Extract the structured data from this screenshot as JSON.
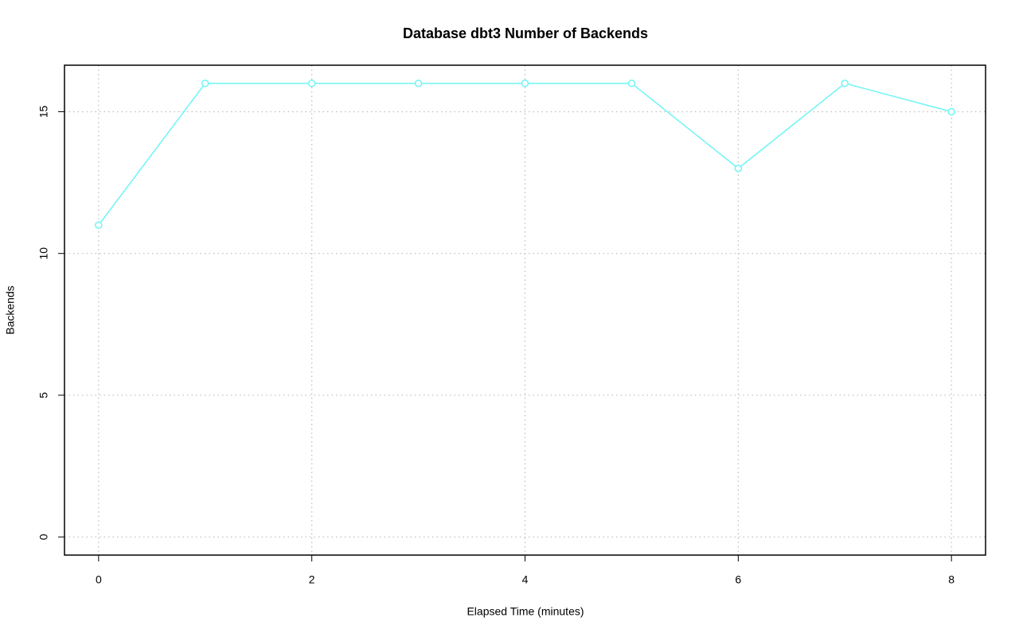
{
  "chart_data": {
    "type": "line",
    "title": "Database dbt3 Number of Backends",
    "xlabel": "Elapsed Time (minutes)",
    "ylabel": "Backends",
    "x": [
      0,
      1,
      2,
      3,
      4,
      5,
      6,
      7,
      8
    ],
    "series": [
      {
        "name": "Backends",
        "color": "#6ff5f5",
        "values": [
          11,
          16,
          16,
          16,
          16,
          16,
          13,
          16,
          15
        ]
      }
    ],
    "xlim": [
      -0.32,
      8.32
    ],
    "xticks": [
      0,
      2,
      4,
      6,
      8
    ],
    "ylim": [
      -0.64,
      16.64
    ],
    "yticks": [
      0,
      5,
      10,
      15
    ],
    "grid": true
  }
}
